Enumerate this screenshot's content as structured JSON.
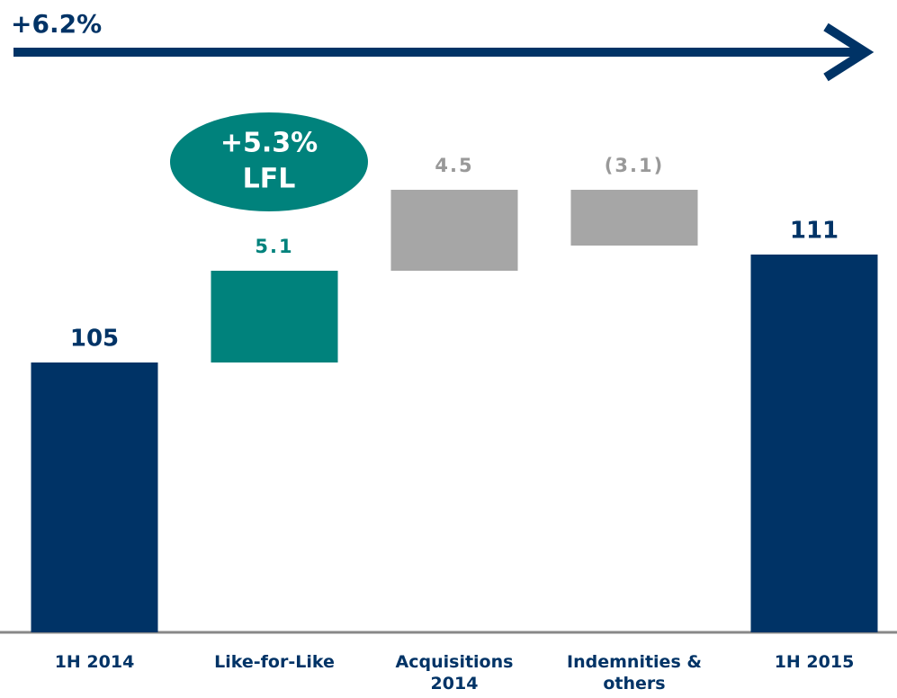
{
  "chart_data": {
    "type": "waterfall",
    "annotations": [
      "+6.2%",
      "+5.3%",
      "LFL"
    ],
    "categories": [
      "1H 2014",
      "Like-for-Like",
      "Acquisitions 2014",
      "Indemnities & others",
      "1H 2015"
    ],
    "values": [
      105,
      5.1,
      4.5,
      -3.1,
      111
    ],
    "value_labels": [
      "105",
      "5.1",
      "4.5",
      "(3.1)",
      "111"
    ],
    "measures": [
      "total",
      "relative",
      "relative",
      "relative",
      "total"
    ],
    "colors": [
      "#003366",
      "#00827c",
      "#a6a6a6",
      "#a6a6a6",
      "#003366"
    ],
    "label_colors": [
      "#003366",
      "#00827c",
      "#999999",
      "#999999",
      "#003366"
    ],
    "ylim": [
      90,
      124
    ]
  }
}
